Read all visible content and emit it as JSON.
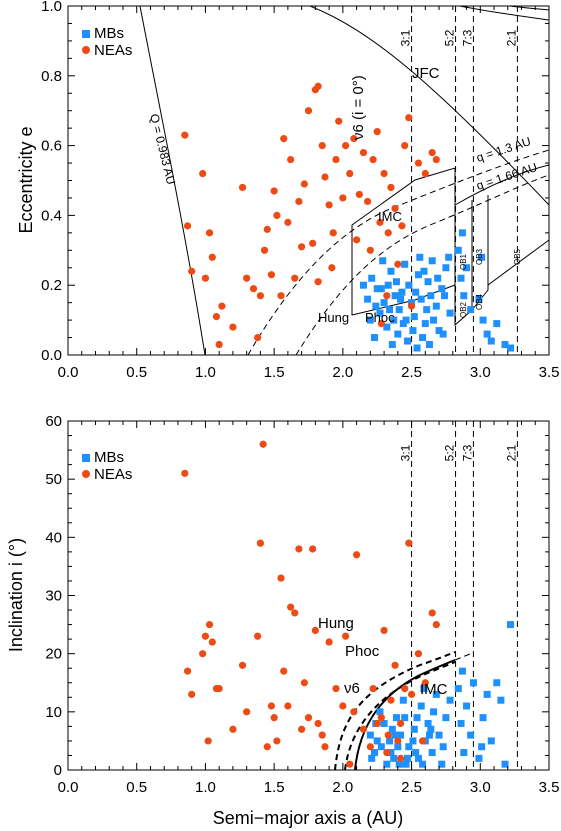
{
  "colors": {
    "mb": "#1e90ff",
    "nea": "#ee4b14"
  },
  "chart_data": [
    {
      "type": "scatter",
      "panel": "top",
      "xlabel": "Semi−major axis a (AU)",
      "ylabel": "Eccentricity e",
      "xlim": [
        0.0,
        3.5
      ],
      "ylim": [
        0.0,
        1.0
      ],
      "xticks": [
        "0.0",
        "0.5",
        "1.0",
        "1.5",
        "2.0",
        "2.5",
        "3.0",
        "3.5"
      ],
      "yticks": [
        "0.0",
        "0.2",
        "0.4",
        "0.6",
        "0.8",
        "1.0"
      ],
      "legend": [
        "MBs",
        "NEAs"
      ],
      "legend_position": "top-left",
      "resonances": [
        {
          "label": "3:1",
          "a": 2.5
        },
        {
          "label": "5:2",
          "a": 2.82
        },
        {
          "label": "7:3",
          "a": 2.95
        },
        {
          "label": "2:1",
          "a": 3.27
        }
      ],
      "annotations": {
        "Q_curve": "Q = 0.983 AU",
        "nu6": "ν6 (i = 0°)",
        "JFC": "JFC",
        "q13": "q = 1.3 AU",
        "q166": "q = 1.66 AU",
        "IMC": "IMC",
        "Hung": "Hung",
        "Phoc": "Phoc",
        "OB1": "OB1",
        "OB2": "OB2",
        "OB3": "OB3",
        "OB4": "OB4",
        "OB5": "OB5"
      },
      "series": [
        {
          "name": "MBs",
          "points": [
            [
              2.21,
              0.22
            ],
            [
              2.25,
              0.19
            ],
            [
              2.3,
              0.15
            ],
            [
              2.35,
              0.24
            ],
            [
              2.38,
              0.17
            ],
            [
              2.41,
              0.13
            ],
            [
              2.45,
              0.26
            ],
            [
              2.48,
              0.2
            ],
            [
              2.52,
              0.11
            ],
            [
              2.55,
              0.23
            ],
            [
              2.57,
              0.16
            ],
            [
              2.6,
              0.09
            ],
            [
              2.62,
              0.21
            ],
            [
              2.65,
              0.27
            ],
            [
              2.68,
              0.14
            ],
            [
              2.7,
              0.07
            ],
            [
              2.72,
              0.19
            ],
            [
              2.75,
              0.25
            ],
            [
              2.2,
              0.1
            ],
            [
              2.23,
              0.05
            ],
            [
              2.27,
              0.12
            ],
            [
              2.32,
              0.08
            ],
            [
              2.36,
              0.03
            ],
            [
              2.4,
              0.06
            ],
            [
              2.44,
              0.09
            ],
            [
              2.47,
              0.04
            ],
            [
              2.51,
              0.07
            ],
            [
              2.54,
              0.02
            ],
            [
              2.58,
              0.05
            ],
            [
              2.63,
              0.03
            ],
            [
              2.66,
              0.1
            ],
            [
              2.73,
              0.06
            ],
            [
              2.78,
              0.12
            ],
            [
              2.18,
              0.16
            ],
            [
              2.15,
              0.2
            ],
            [
              2.29,
              0.27
            ],
            [
              2.33,
              0.2
            ],
            [
              2.43,
              0.18
            ],
            [
              2.5,
              0.15
            ],
            [
              2.56,
              0.28
            ],
            [
              2.61,
              0.13
            ],
            [
              2.69,
              0.22
            ],
            [
              2.74,
              0.17
            ],
            [
              2.77,
              0.28
            ],
            [
              2.86,
              0.22
            ],
            [
              2.88,
              0.17
            ],
            [
              2.9,
              0.25
            ],
            [
              2.93,
              0.13
            ],
            [
              2.99,
              0.16
            ],
            [
              3.02,
              0.1
            ],
            [
              3.05,
              0.06
            ],
            [
              3.08,
              0.04
            ],
            [
              3.12,
              0.09
            ],
            [
              3.18,
              0.03
            ],
            [
              3.22,
              0.02
            ],
            [
              3.01,
              0.28
            ],
            [
              2.87,
              0.35
            ],
            [
              2.84,
              0.3
            ],
            [
              2.34,
              0.13
            ],
            [
              2.39,
              0.21
            ],
            [
              2.46,
              0.1
            ],
            [
              2.53,
              0.18
            ],
            [
              2.59,
              0.24
            ],
            [
              2.64,
              0.17
            ],
            [
              2.28,
              0.19
            ],
            [
              2.24,
              0.14
            ],
            [
              2.37,
              0.1
            ],
            [
              2.42,
              0.16
            ]
          ]
        },
        {
          "name": "NEAs",
          "points": [
            [
              0.85,
              0.63
            ],
            [
              0.87,
              0.37
            ],
            [
              0.9,
              0.24
            ],
            [
              0.98,
              0.52
            ],
            [
              1.0,
              0.22
            ],
            [
              1.03,
              0.35
            ],
            [
              1.05,
              0.28
            ],
            [
              1.08,
              0.11
            ],
            [
              1.1,
              0.03
            ],
            [
              1.12,
              0.14
            ],
            [
              1.2,
              0.08
            ],
            [
              1.27,
              0.48
            ],
            [
              1.3,
              0.22
            ],
            [
              1.35,
              0.19
            ],
            [
              1.38,
              0.05
            ],
            [
              1.4,
              0.17
            ],
            [
              1.43,
              0.3
            ],
            [
              1.45,
              0.36
            ],
            [
              1.48,
              0.23
            ],
            [
              1.5,
              0.47
            ],
            [
              1.52,
              0.4
            ],
            [
              1.55,
              0.17
            ],
            [
              1.57,
              0.62
            ],
            [
              1.6,
              0.38
            ],
            [
              1.62,
              0.56
            ],
            [
              1.65,
              0.22
            ],
            [
              1.68,
              0.44
            ],
            [
              1.7,
              0.31
            ],
            [
              1.72,
              0.49
            ],
            [
              1.75,
              0.7
            ],
            [
              1.78,
              0.32
            ],
            [
              1.8,
              0.76
            ],
            [
              1.82,
              0.77
            ],
            [
              1.85,
              0.6
            ],
            [
              1.87,
              0.51
            ],
            [
              1.9,
              0.43
            ],
            [
              1.93,
              0.35
            ],
            [
              1.95,
              0.56
            ],
            [
              1.97,
              0.67
            ],
            [
              2.0,
              0.45
            ],
            [
              2.02,
              0.6
            ],
            [
              2.05,
              0.52
            ],
            [
              2.08,
              0.62
            ],
            [
              2.1,
              0.33
            ],
            [
              2.12,
              0.46
            ],
            [
              2.15,
              0.58
            ],
            [
              2.18,
              0.44
            ],
            [
              2.2,
              0.3
            ],
            [
              2.22,
              0.56
            ],
            [
              2.25,
              0.64
            ],
            [
              2.27,
              0.38
            ],
            [
              2.3,
              0.52
            ],
            [
              2.33,
              0.35
            ],
            [
              2.35,
              0.48
            ],
            [
              2.38,
              0.42
            ],
            [
              2.4,
              0.26
            ],
            [
              2.43,
              0.37
            ],
            [
              2.45,
              0.6
            ],
            [
              2.48,
              0.68
            ],
            [
              2.55,
              0.55
            ],
            [
              2.6,
              0.52
            ],
            [
              2.65,
              0.58
            ],
            [
              2.68,
              0.56
            ],
            [
              2.32,
              0.17
            ],
            [
              2.5,
              0.14
            ],
            [
              2.28,
              0.09
            ],
            [
              1.82,
              0.21
            ],
            [
              1.92,
              0.25
            ]
          ]
        }
      ]
    },
    {
      "type": "scatter",
      "panel": "bottom",
      "xlabel": "Semi−major axis a (AU)",
      "ylabel": "Inclination i (°)",
      "xlim": [
        0.0,
        3.5
      ],
      "ylim": [
        0,
        60
      ],
      "xticks": [
        "0.0",
        "0.5",
        "1.0",
        "1.5",
        "2.0",
        "2.5",
        "3.0",
        "3.5"
      ],
      "yticks": [
        "0",
        "10",
        "20",
        "30",
        "40",
        "50",
        "60"
      ],
      "legend": [
        "MBs",
        "NEAs"
      ],
      "legend_position": "top-left",
      "resonances": [
        {
          "label": "3:1",
          "a": 2.5
        },
        {
          "label": "5:2",
          "a": 2.82
        },
        {
          "label": "7:3",
          "a": 2.95
        },
        {
          "label": "2:1",
          "a": 3.27
        }
      ],
      "annotations": {
        "Hung": "Hung",
        "Phoc": "Phoc",
        "nu6": "ν6",
        "IMC": "IMC"
      },
      "series": [
        {
          "name": "MBs",
          "points": [
            [
              2.21,
              2
            ],
            [
              2.25,
              5
            ],
            [
              2.3,
              8
            ],
            [
              2.35,
              3
            ],
            [
              2.38,
              6
            ],
            [
              2.41,
              1
            ],
            [
              2.45,
              9
            ],
            [
              2.48,
              4
            ],
            [
              2.52,
              7
            ],
            [
              2.55,
              2
            ],
            [
              2.57,
              11
            ],
            [
              2.6,
              5
            ],
            [
              2.62,
              8
            ],
            [
              2.65,
              3
            ],
            [
              2.68,
              13
            ],
            [
              2.7,
              6
            ],
            [
              2.72,
              1
            ],
            [
              2.75,
              9
            ],
            [
              2.78,
              12
            ],
            [
              2.2,
              6
            ],
            [
              2.23,
              3
            ],
            [
              2.27,
              10
            ],
            [
              2.32,
              1
            ],
            [
              2.36,
              7
            ],
            [
              2.4,
              4
            ],
            [
              2.44,
              12
            ],
            [
              2.47,
              2
            ],
            [
              2.51,
              5
            ],
            [
              2.54,
              9
            ],
            [
              2.58,
              1
            ],
            [
              2.63,
              6
            ],
            [
              2.66,
              10
            ],
            [
              2.73,
              4
            ],
            [
              2.86,
              8
            ],
            [
              2.88,
              3
            ],
            [
              2.9,
              11
            ],
            [
              2.93,
              6
            ],
            [
              2.99,
              2
            ],
            [
              3.02,
              9
            ],
            [
              3.05,
              13
            ],
            [
              3.08,
              5
            ],
            [
              3.12,
              15
            ],
            [
              3.18,
              1
            ],
            [
              3.22,
              25
            ],
            [
              3.01,
              4
            ],
            [
              2.87,
              17
            ],
            [
              2.84,
              14
            ],
            [
              2.34,
              5
            ],
            [
              2.39,
              9
            ],
            [
              2.46,
              1
            ],
            [
              2.53,
              3
            ],
            [
              2.59,
              14
            ],
            [
              2.64,
              7
            ],
            [
              2.28,
              4
            ],
            [
              2.24,
              8
            ],
            [
              2.37,
              2
            ],
            [
              2.42,
              6
            ],
            [
              3.15,
              12
            ],
            [
              2.95,
              15
            ]
          ]
        },
        {
          "name": "NEAs",
          "points": [
            [
              0.85,
              51
            ],
            [
              0.87,
              17
            ],
            [
              0.9,
              13
            ],
            [
              0.98,
              20
            ],
            [
              1.0,
              23
            ],
            [
              1.02,
              5
            ],
            [
              1.03,
              25
            ],
            [
              1.05,
              22
            ],
            [
              1.08,
              14
            ],
            [
              1.1,
              14
            ],
            [
              1.2,
              7
            ],
            [
              1.27,
              18
            ],
            [
              1.3,
              10
            ],
            [
              1.38,
              23
            ],
            [
              1.4,
              39
            ],
            [
              1.42,
              56
            ],
            [
              1.45,
              4
            ],
            [
              1.48,
              11
            ],
            [
              1.5,
              9
            ],
            [
              1.52,
              5
            ],
            [
              1.55,
              33
            ],
            [
              1.57,
              17
            ],
            [
              1.6,
              11
            ],
            [
              1.62,
              28
            ],
            [
              1.65,
              27
            ],
            [
              1.68,
              38
            ],
            [
              1.7,
              7
            ],
            [
              1.72,
              15
            ],
            [
              1.75,
              9
            ],
            [
              1.78,
              38
            ],
            [
              1.8,
              24
            ],
            [
              1.82,
              8
            ],
            [
              1.85,
              6
            ],
            [
              1.87,
              4
            ],
            [
              1.9,
              22
            ],
            [
              1.95,
              14
            ],
            [
              2.0,
              11
            ],
            [
              2.02,
              23
            ],
            [
              2.05,
              1
            ],
            [
              2.08,
              10
            ],
            [
              2.1,
              37
            ],
            [
              2.15,
              7
            ],
            [
              2.2,
              4
            ],
            [
              2.22,
              14
            ],
            [
              2.25,
              8
            ],
            [
              2.28,
              9
            ],
            [
              2.3,
              24
            ],
            [
              2.33,
              6
            ],
            [
              2.35,
              12
            ],
            [
              2.38,
              18
            ],
            [
              2.4,
              5
            ],
            [
              2.42,
              8
            ],
            [
              2.45,
              14
            ],
            [
              2.48,
              39
            ],
            [
              2.5,
              13
            ],
            [
              2.55,
              20
            ],
            [
              2.6,
              15
            ],
            [
              2.65,
              27
            ],
            [
              2.68,
              25
            ],
            [
              2.32,
              3
            ],
            [
              2.42,
              2
            ],
            [
              2.58,
              5
            ]
          ]
        }
      ]
    }
  ]
}
